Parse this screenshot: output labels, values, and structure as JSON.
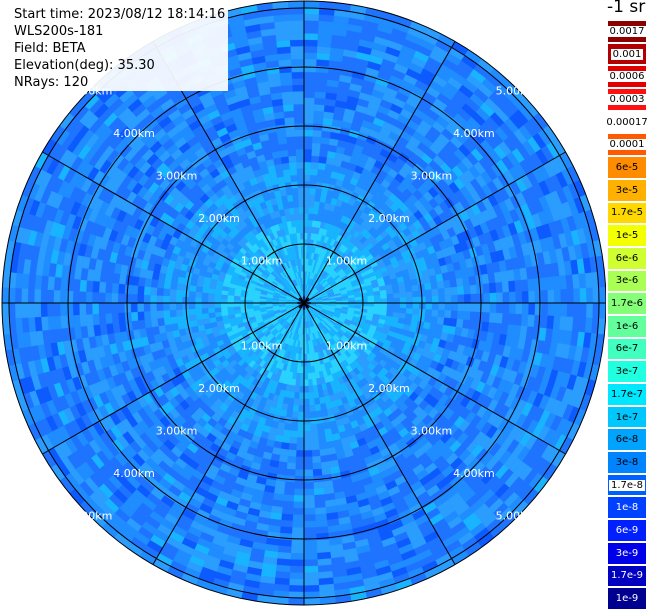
{
  "header": {
    "start_time": "Start time: 2023/08/12 18:14:16",
    "instrument": "WLS200s-181",
    "field": "Field: BETA",
    "elevation": "Elevation(deg): 35.30",
    "nrays": "NRays: 120"
  },
  "unit_label": "-1 sr",
  "range_labels": [
    "1.00km",
    "2.00km",
    "3.00km",
    "4.00km",
    "5.00km"
  ],
  "colorbar": [
    {
      "label": "0.0017",
      "color": "#8c0000",
      "text_color": "#000000",
      "label_bg": "#ffffff"
    },
    {
      "label": "0.001",
      "color": "#b20000",
      "text_color": "#000000",
      "label_bg": "#ffffff"
    },
    {
      "label": "0.0006",
      "color": "#e00000",
      "text_color": "#000000",
      "label_bg": "#ffffff"
    },
    {
      "label": "0.0003",
      "color": "#ff1010",
      "text_color": "#000000",
      "label_bg": "#ffffff"
    },
    {
      "label": "0.00017",
      "color": "#ffffff",
      "text_color": "#000000"
    },
    {
      "label": "0.0001",
      "color": "#ff5a00",
      "text_color": "#000000",
      "label_bg": "#ffffff"
    },
    {
      "label": "6e-5",
      "color": "#ff8c00",
      "text_color": "#000000"
    },
    {
      "label": "3e-5",
      "color": "#ffb000",
      "text_color": "#000000"
    },
    {
      "label": "1.7e-5",
      "color": "#ffd800",
      "text_color": "#000000"
    },
    {
      "label": "1e-5",
      "color": "#f4ff00",
      "text_color": "#000000"
    },
    {
      "label": "6e-6",
      "color": "#cfff30",
      "text_color": "#000000"
    },
    {
      "label": "3e-6",
      "color": "#aaff55",
      "text_color": "#000000"
    },
    {
      "label": "1.7e-6",
      "color": "#86ff78",
      "text_color": "#000000"
    },
    {
      "label": "1e-6",
      "color": "#63ff9c",
      "text_color": "#000000"
    },
    {
      "label": "6e-7",
      "color": "#40ffbf",
      "text_color": "#000000"
    },
    {
      "label": "3e-7",
      "color": "#20ffe0",
      "text_color": "#000000"
    },
    {
      "label": "1.7e-7",
      "color": "#00e8ff",
      "text_color": "#000000"
    },
    {
      "label": "1e-7",
      "color": "#00c8ff",
      "text_color": "#000000"
    },
    {
      "label": "6e-8",
      "color": "#00a4ff",
      "text_color": "#000000"
    },
    {
      "label": "3e-8",
      "color": "#0084ff",
      "text_color": "#000000"
    },
    {
      "label": "1.7e-8",
      "color": "#0060ff",
      "text_color": "#000000",
      "label_bg": "#ffffff"
    },
    {
      "label": "1e-8",
      "color": "#0040ff",
      "text_color": "#ffffff"
    },
    {
      "label": "6e-9",
      "color": "#0020ff",
      "text_color": "#ffffff"
    },
    {
      "label": "3e-9",
      "color": "#0000e8",
      "text_color": "#ffffff"
    },
    {
      "label": "1.7e-9",
      "color": "#0000c0",
      "text_color": "#ffffff"
    },
    {
      "label": "1e-9",
      "color": "#000090",
      "text_color": "#ffffff"
    }
  ],
  "field_palette": [
    "#0d5bff",
    "#1f74ff",
    "#1f8cff",
    "#2a9dff",
    "#18b4ff",
    "#2ad2ff",
    "#0a3cf0"
  ]
}
